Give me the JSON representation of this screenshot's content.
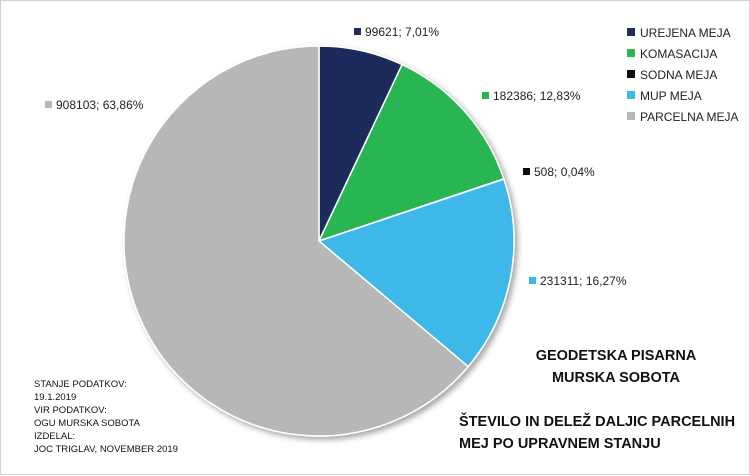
{
  "chart_data": {
    "type": "pie",
    "title": "",
    "slices": [
      {
        "name": "UREJENA MEJA",
        "value": 99621,
        "percent": "7,01%",
        "label": "99621; 7,01%",
        "color": "#1f2c5c"
      },
      {
        "name": "KOMASACIJA",
        "value": 182386,
        "percent": "12,83%",
        "label": "182386; 12,83%",
        "color": "#2bb552"
      },
      {
        "name": "SODNA MEJA",
        "value": 508,
        "percent": "0,04%",
        "label": "508; 0,04%",
        "color": "#0d0d0d"
      },
      {
        "name": "MUP MEJA",
        "value": 231311,
        "percent": "16,27%",
        "label": "231311; 16,27%",
        "color": "#3db8e8"
      },
      {
        "name": "PARCELNA MEJA",
        "value": 908103,
        "percent": "63,86%",
        "label": "908103; 63,86%",
        "color": "#b7b7b7"
      }
    ],
    "legend_position": "top-right"
  },
  "texts": {
    "org_line1": "GEODETSKA PISARNA",
    "org_line2": "MURSKA SOBOTA",
    "title_line1": "ŠTEVILO IN DELEŽ DALJIC PARCELNIH",
    "title_line2": "MEJ PO UPRAVNEM STANJU",
    "notes": [
      "STANJE PODATKOV:",
      "19.1.2019",
      "VIR PODATKOV:",
      "OGU MURSKA SOBOTA",
      "IZDELAL:",
      "JOC TRIGLAV, NOVEMBER 2019"
    ]
  }
}
